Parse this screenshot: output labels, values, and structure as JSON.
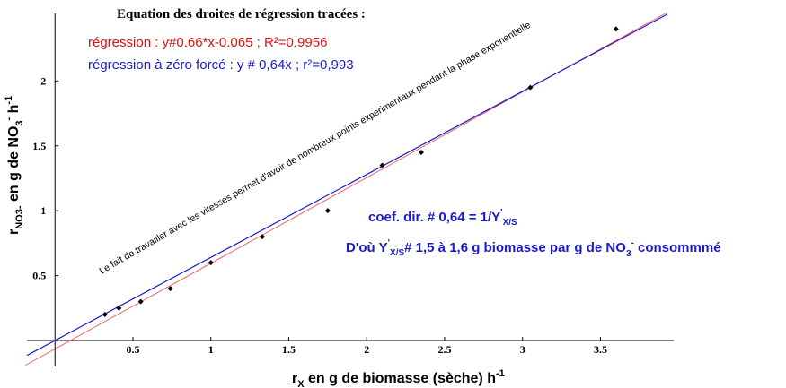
{
  "chart_data": {
    "type": "scatter",
    "heading": "Equation des droites de régression tracées :",
    "eq_red": "régression : y#0.66*x-0.065 ; R²=0.9956",
    "eq_blue": "régression à zéro forcé : y # 0,64x ; r²=0,993",
    "note": "Le fait de travailler avec les vitesses permet d'avoir de nombreux points expérimentaux pendant la phase exponentielle",
    "coef_line": [
      "coef. dir. # 0,64  = 1/Y",
      "'",
      "X/S"
    ],
    "yield_line": [
      "D'où Y",
      "'",
      "X/S",
      "#  1,5 à 1,6 g biomasse par g de NO",
      "3",
      "-",
      " consommmé"
    ],
    "xlabel": [
      "r",
      "X",
      " en g de biomasse (sèche) h",
      "-1"
    ],
    "ylabel": [
      "r",
      "NO3-",
      " en g de NO",
      "3",
      "-",
      " h",
      "-1"
    ],
    "xlim": [
      -0.18,
      3.97
    ],
    "ylim": [
      -0.2,
      2.52
    ],
    "xticks": [
      0.5,
      1,
      1.5,
      2,
      2.5,
      3,
      3.5
    ],
    "yticks": [
      0.5,
      1,
      1.5,
      2
    ],
    "points": {
      "color": "#000000",
      "x": [
        0.32,
        0.41,
        0.55,
        0.74,
        1.0,
        1.33,
        1.75,
        2.1,
        2.35,
        3.05,
        3.6
      ],
      "values": [
        0.2,
        0.25,
        0.3,
        0.4,
        0.6,
        0.8,
        1.0,
        1.35,
        1.45,
        1.95,
        2.4
      ]
    },
    "fit_lines": [
      {
        "color": "#ff4040",
        "x": [
          -0.19,
          3.93
        ],
        "values": [
          -0.19,
          2.529
        ]
      },
      {
        "color": "#1a1acc",
        "x": [
          -0.18,
          3.93
        ],
        "values": [
          -0.115,
          2.515
        ]
      }
    ]
  }
}
